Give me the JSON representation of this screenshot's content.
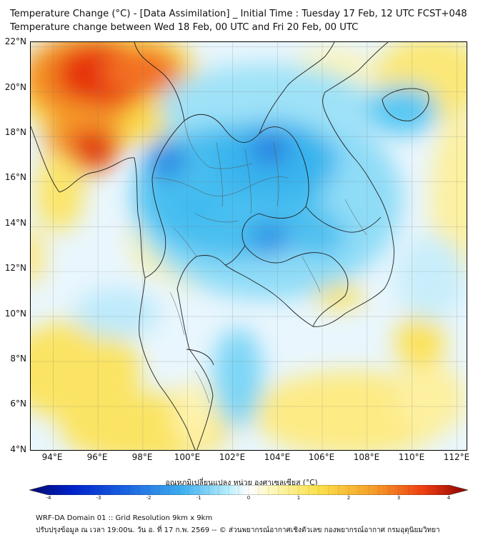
{
  "title": {
    "line1": "Temperature Change (°C) - [Data Assimilation] _ Initial Time : Tuesday 17 Feb, 12 UTC FCST+048",
    "line2": "Temperature change between Wed 18 Feb, 00 UTC and Fri 20 Feb, 00 UTC"
  },
  "map": {
    "lon_range": [
      93,
      112.5
    ],
    "lat_range": [
      4,
      22.2
    ],
    "lat_labels": [
      "22°N",
      "20°N",
      "18°N",
      "16°N",
      "14°N",
      "12°N",
      "10°N",
      "8°N",
      "6°N",
      "4°N"
    ],
    "lon_labels": [
      "94°E",
      "96°E",
      "98°E",
      "100°E",
      "102°E",
      "104°E",
      "106°E",
      "108°E",
      "110°E",
      "112°E"
    ],
    "gridlines": true
  },
  "colorbar": {
    "title": "อุณหภูมิเปลี่ยนแปลง หน่วย องศาเซลเซียส (°C)",
    "ticks": [
      "-4",
      "-3",
      "-2",
      "-1",
      "0",
      "1",
      "2",
      "3",
      "4"
    ],
    "range": [
      -4,
      4
    ],
    "colors": [
      "#000a6e",
      "#0022cc",
      "#1b63e0",
      "#3fb0f0",
      "#b4ecfb",
      "#ffffff",
      "#fdf6b2",
      "#fbe04a",
      "#f6a12a",
      "#ee3d11",
      "#8b0000"
    ]
  },
  "footer": {
    "line1": "WRF-DA Domain 01 :: Grid Resolution 9km x 9km",
    "line2": "ปรับปรุงข้อมูล ณ เวลา 19:00น. วัน อ. ที่ 17 ก.พ. 2569 -- © ส่วนพยากรณ์อากาศเชิงตัวเลข กองพยากรณ์อากาศ กรมอุตุนิยมวิทยา"
  }
}
